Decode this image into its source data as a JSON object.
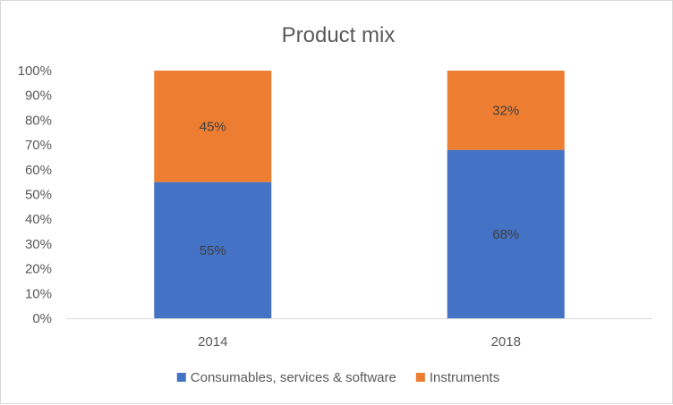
{
  "chart_data": {
    "type": "bar",
    "stacked": true,
    "title": "Product mix",
    "xlabel": "",
    "ylabel": "",
    "categories": [
      "2014",
      "2018"
    ],
    "series": [
      {
        "name": "Consumables, services & software",
        "values": [
          55,
          68
        ],
        "labels": [
          "55%",
          "68%"
        ],
        "color": "#4472c4"
      },
      {
        "name": "Instruments",
        "values": [
          45,
          32
        ],
        "labels": [
          "45%",
          "32%"
        ],
        "color": "#ed7d31"
      }
    ],
    "ylim": [
      0,
      100
    ],
    "yticks": [
      "0%",
      "10%",
      "20%",
      "30%",
      "40%",
      "50%",
      "60%",
      "70%",
      "80%",
      "90%",
      "100%"
    ],
    "grid": false,
    "legend": "bottom"
  }
}
